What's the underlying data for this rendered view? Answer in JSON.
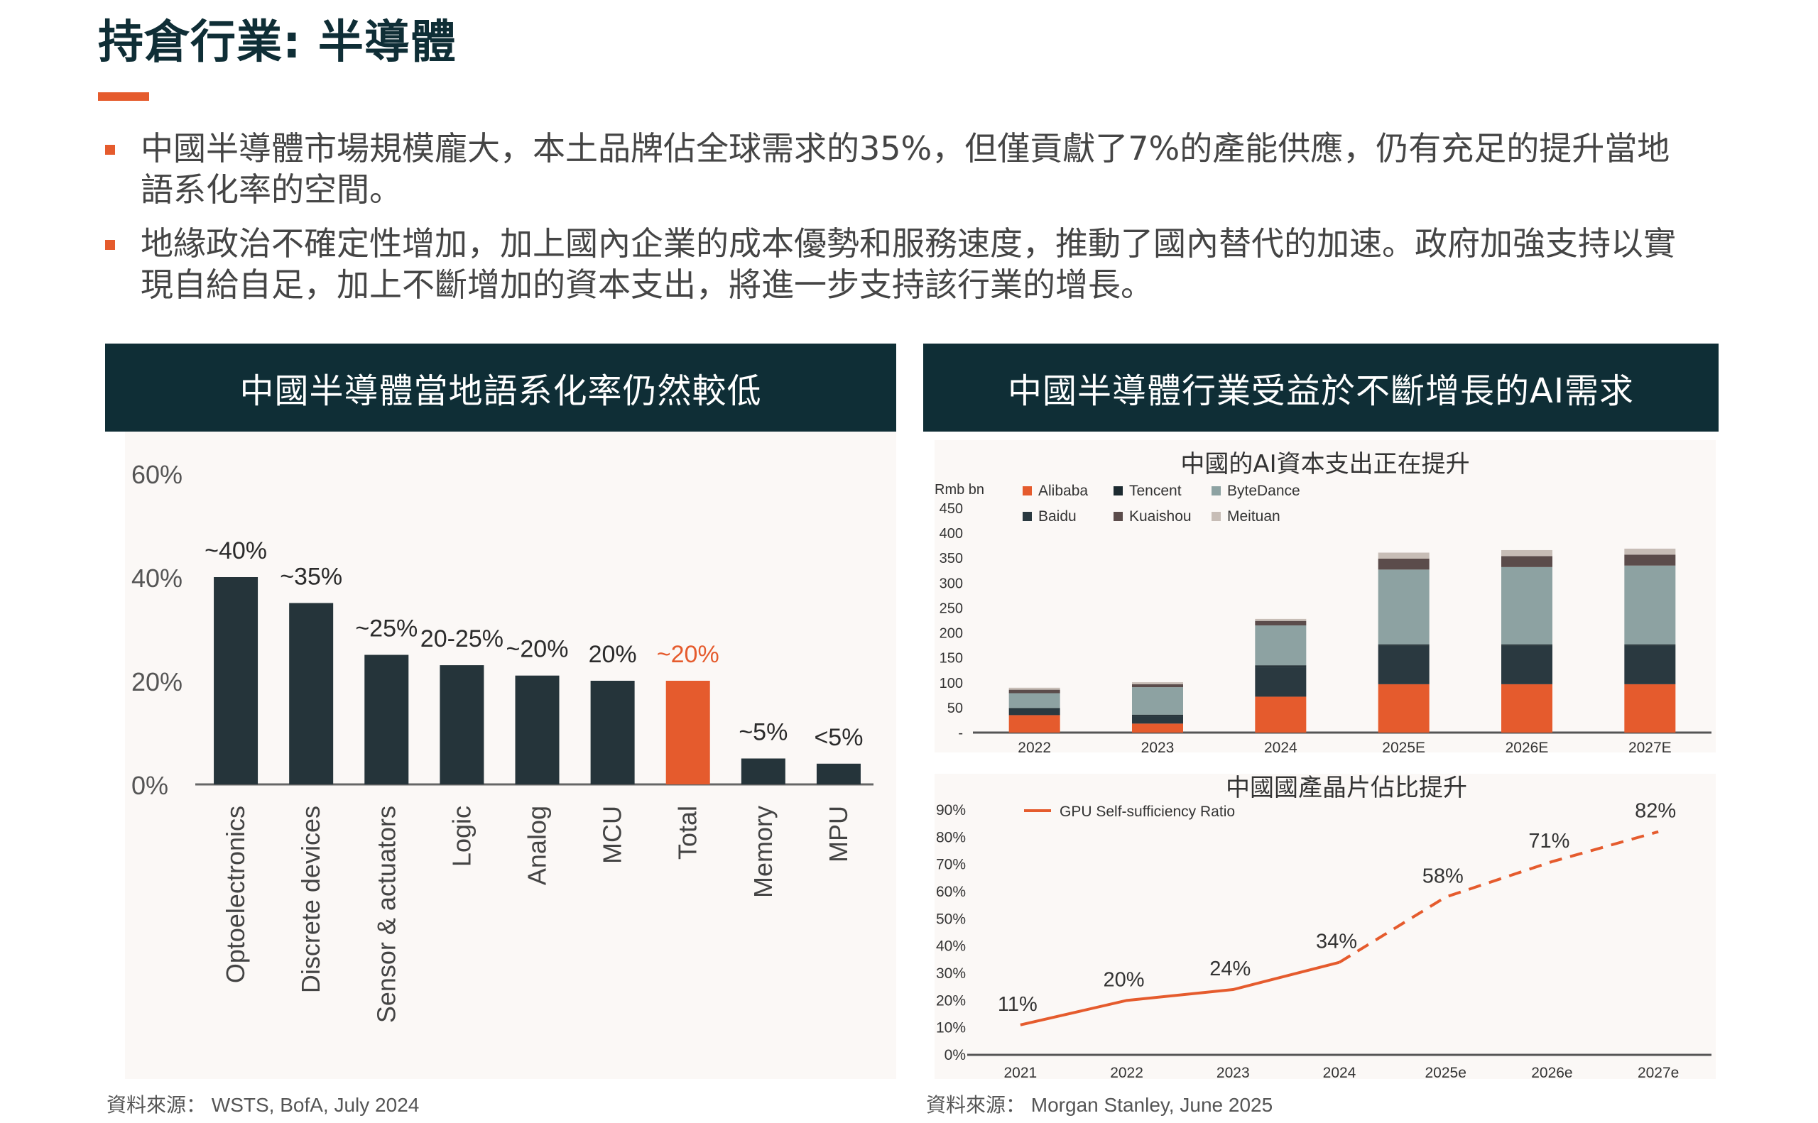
{
  "page": {
    "title": "持倉行業: 半導體",
    "bullets": [
      "中國半導體市場規模龐大，本土品牌佔全球需求的35%，但僅貢獻了7%的產能供應，仍有充足的提升當地語系化率的空間。",
      "地緣政治不確定性增加，加上國內企業的成本優勢和服務速度，推動了國內替代的加速。政府加強支持以實現自給自足，加上不斷增加的資本支出，將進一步支持該行業的增長。"
    ]
  },
  "left_panel": {
    "header": "中國半導體當地語系化率仍然較低",
    "source": "資料來源： WSTS, BofA, July 2024"
  },
  "right_panel": {
    "header": "中國半導體行業受益於不斷增長的AI需求",
    "chart1_title": "中國的AI資本支出正在提升",
    "chart2_title": "中國國產晶片佔比提升",
    "source": "資料來源： Morgan Stanley, June 2025"
  },
  "colors": {
    "accent": "#e55b2d",
    "navy": "#0f2e36",
    "bar_dark": "#25343a",
    "panel_bg": "#fbf8f6"
  },
  "chart_data": [
    {
      "type": "bar",
      "categories": [
        "Optoelectronics",
        "Discrete devices",
        "Sensor & actuators",
        "Logic",
        "Analog",
        "MCU",
        "Total",
        "Memory",
        "MPU"
      ],
      "values": [
        40,
        35,
        25,
        23,
        21,
        20,
        20,
        5,
        4
      ],
      "data_labels": [
        "~40%",
        "~35%",
        "~25%",
        "20-25%",
        "~20%",
        "20%",
        "~20%",
        "~5%",
        "<5%"
      ],
      "highlight_index": 6,
      "yticks": [
        "0%",
        "20%",
        "40%",
        "60%"
      ],
      "ylim": [
        0,
        60
      ],
      "grid": false
    },
    {
      "type": "bar",
      "stacked": true,
      "ylabel": "Rmb bn",
      "ylim": [
        0,
        450
      ],
      "yticks": [
        "-",
        "50",
        "100",
        "150",
        "200",
        "250",
        "300",
        "350",
        "400",
        "450"
      ],
      "categories": [
        "2022",
        "2023",
        "2024",
        "2025E",
        "2026E",
        "2027E"
      ],
      "legend_position": "top-left",
      "series": [
        {
          "name": "Alibaba",
          "color": "#e55b2d",
          "values": [
            35,
            18,
            72,
            97,
            97,
            97
          ]
        },
        {
          "name": "Baidu",
          "color": "#2a3940",
          "values": [
            12,
            16,
            60,
            77,
            77,
            77
          ]
        },
        {
          "name": "Tencent",
          "color": "#1c2a30",
          "values": [
            2,
            2,
            3,
            3,
            3,
            3
          ]
        },
        {
          "name": "ByteDance",
          "color": "#8da2a2",
          "values": [
            30,
            55,
            80,
            150,
            155,
            158
          ]
        },
        {
          "name": "Kuaishou",
          "color": "#5b4c4b",
          "values": [
            7,
            6,
            9,
            22,
            22,
            22
          ]
        },
        {
          "name": "Meituan",
          "color": "#c7bdb6",
          "values": [
            4,
            4,
            4,
            12,
            12,
            12
          ]
        }
      ],
      "legend_order": [
        "Alibaba",
        "Tencent",
        "ByteDance",
        "Baidu",
        "Kuaishou",
        "Meituan"
      ]
    },
    {
      "type": "line",
      "x": [
        "2021",
        "2022",
        "2023",
        "2024",
        "2025e",
        "2026e",
        "2027e"
      ],
      "series": [
        {
          "name": "GPU Self-sufficiency Ratio",
          "color": "#e55b2d",
          "values": [
            11,
            20,
            24,
            34,
            58,
            71,
            82
          ],
          "data_labels": [
            "11%",
            "20%",
            "24%",
            "34%",
            "58%",
            "71%",
            "82%"
          ],
          "dashed_from_index": 3
        }
      ],
      "ylim": [
        0,
        90
      ],
      "yticks": [
        "0%",
        "10%",
        "20%",
        "30%",
        "40%",
        "50%",
        "60%",
        "70%",
        "80%",
        "90%"
      ],
      "legend_position": "top-left"
    }
  ]
}
